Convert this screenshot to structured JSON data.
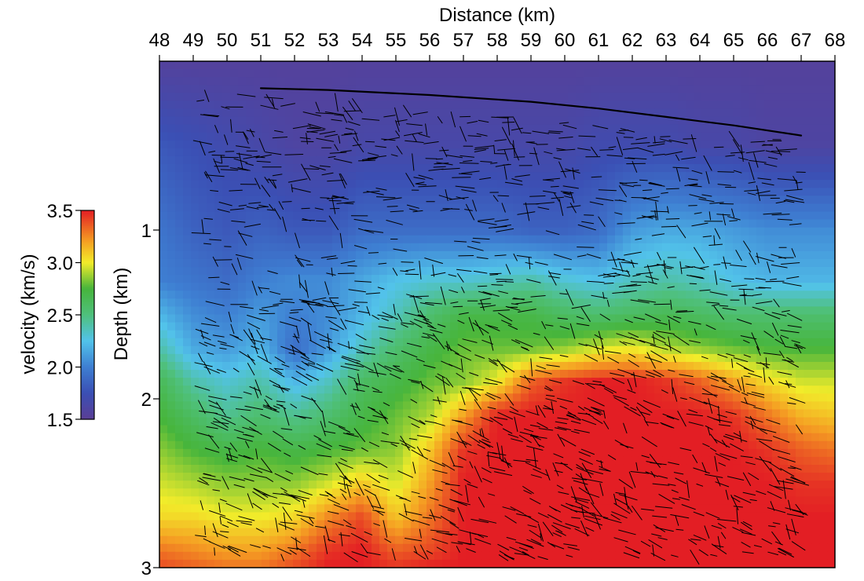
{
  "chart_data": {
    "type": "heatmap",
    "title": "",
    "xlabel": "Distance (km)",
    "ylabel": "Depth (km)",
    "x_axis_position": "top",
    "xlim": [
      48,
      68
    ],
    "ylim": [
      3,
      0
    ],
    "xticks": [
      48,
      49,
      50,
      51,
      52,
      53,
      54,
      55,
      56,
      57,
      58,
      59,
      60,
      61,
      62,
      63,
      64,
      65,
      66,
      67,
      68
    ],
    "yticks": [
      1,
      2,
      3
    ],
    "grid": false,
    "overlay": "black short line segments (dip/structure markers) scattered over the velocity field",
    "colorbar": {
      "label": "velocity (km/s)",
      "min": 1.5,
      "max": 3.5,
      "ticks": [
        1.5,
        2.0,
        2.5,
        3.0,
        3.5
      ],
      "tick_labels": [
        "1.5",
        "2.0",
        "2.5",
        "3.0",
        "3.5"
      ],
      "placement": "left",
      "stops": [
        {
          "v": 1.5,
          "color": "#5a3e96"
        },
        {
          "v": 1.75,
          "color": "#3b4fb4"
        },
        {
          "v": 2.0,
          "color": "#3e7fd2"
        },
        {
          "v": 2.25,
          "color": "#52c3ea"
        },
        {
          "v": 2.5,
          "color": "#4fc07c"
        },
        {
          "v": 2.75,
          "color": "#47b53c"
        },
        {
          "v": 3.0,
          "color": "#f2ec2a"
        },
        {
          "v": 3.2,
          "color": "#f5a023"
        },
        {
          "v": 3.5,
          "color": "#e31e24"
        }
      ]
    },
    "velocity_model": {
      "description": "approximate interval velocity (km/s) sampled on a regular grid",
      "x": [
        48,
        49,
        50,
        51,
        52,
        53,
        54,
        55,
        56,
        57,
        58,
        59,
        60,
        61,
        62,
        63,
        64,
        65,
        66,
        67,
        68
      ],
      "depth": [
        0.0,
        0.5,
        1.0,
        1.3,
        1.5,
        1.7,
        1.9,
        2.1,
        2.3,
        2.5,
        2.7,
        2.9,
        3.0
      ],
      "values": [
        [
          1.55,
          1.55,
          1.55,
          1.55,
          1.55,
          1.55,
          1.55,
          1.55,
          1.55,
          1.55,
          1.55,
          1.55,
          1.55,
          1.55,
          1.55,
          1.55,
          1.55,
          1.55,
          1.55,
          1.55,
          1.55
        ],
        [
          1.8,
          1.75,
          1.7,
          1.65,
          1.6,
          1.6,
          1.65,
          1.65,
          1.65,
          1.65,
          1.65,
          1.65,
          1.65,
          1.7,
          1.7,
          1.7,
          1.65,
          1.65,
          1.6,
          1.6,
          1.6
        ],
        [
          1.95,
          1.85,
          1.8,
          1.85,
          1.8,
          1.8,
          1.9,
          1.9,
          1.9,
          1.9,
          1.9,
          1.85,
          1.85,
          1.9,
          2.1,
          2.15,
          2.15,
          2.1,
          2.05,
          2.05,
          2.05
        ],
        [
          2.0,
          1.95,
          1.9,
          2.0,
          2.05,
          2.05,
          2.15,
          2.25,
          2.3,
          2.3,
          2.35,
          2.4,
          2.3,
          2.25,
          2.35,
          2.4,
          2.35,
          2.25,
          2.2,
          2.2,
          2.2
        ],
        [
          2.2,
          2.05,
          2.0,
          2.1,
          2.0,
          2.05,
          2.2,
          2.35,
          2.55,
          2.7,
          2.7,
          2.7,
          2.6,
          2.55,
          2.6,
          2.65,
          2.6,
          2.55,
          2.55,
          2.55,
          2.55
        ],
        [
          2.4,
          2.15,
          2.1,
          2.2,
          1.9,
          2.1,
          2.35,
          2.55,
          2.7,
          2.8,
          2.8,
          2.8,
          2.85,
          2.95,
          3.0,
          2.9,
          2.85,
          2.8,
          2.75,
          2.75,
          2.75
        ],
        [
          2.65,
          2.4,
          2.3,
          2.4,
          2.2,
          2.35,
          2.6,
          2.7,
          2.8,
          2.85,
          3.0,
          3.35,
          3.45,
          3.5,
          3.5,
          3.45,
          3.35,
          3.2,
          3.05,
          2.95,
          2.95
        ],
        [
          2.75,
          2.6,
          2.45,
          2.55,
          2.45,
          2.55,
          2.7,
          2.8,
          2.9,
          3.2,
          3.5,
          3.5,
          3.5,
          3.5,
          3.5,
          3.5,
          3.5,
          3.45,
          3.3,
          3.15,
          3.1
        ],
        [
          2.85,
          2.75,
          2.7,
          2.75,
          2.7,
          2.75,
          2.8,
          2.85,
          3.1,
          3.45,
          3.5,
          3.5,
          3.5,
          3.5,
          3.5,
          3.5,
          3.5,
          3.5,
          3.45,
          3.35,
          3.3
        ],
        [
          2.95,
          2.9,
          2.85,
          2.85,
          2.85,
          2.95,
          3.1,
          2.95,
          3.2,
          3.5,
          3.5,
          3.5,
          3.5,
          3.5,
          3.5,
          3.5,
          3.5,
          3.5,
          3.5,
          3.45,
          3.45
        ],
        [
          3.05,
          3.05,
          3.0,
          3.0,
          3.05,
          3.25,
          3.4,
          3.1,
          3.3,
          3.5,
          3.5,
          3.5,
          3.5,
          3.5,
          3.5,
          3.5,
          3.5,
          3.5,
          3.5,
          3.5,
          3.5
        ],
        [
          3.3,
          3.25,
          3.2,
          3.2,
          3.3,
          3.45,
          3.5,
          3.35,
          3.4,
          3.5,
          3.5,
          3.5,
          3.5,
          3.5,
          3.5,
          3.5,
          3.5,
          3.5,
          3.5,
          3.5,
          3.5
        ],
        [
          3.4,
          3.35,
          3.3,
          3.3,
          3.4,
          3.5,
          3.5,
          3.45,
          3.5,
          3.5,
          3.5,
          3.5,
          3.5,
          3.5,
          3.5,
          3.5,
          3.5,
          3.5,
          3.5,
          3.5,
          3.5
        ]
      ]
    }
  }
}
